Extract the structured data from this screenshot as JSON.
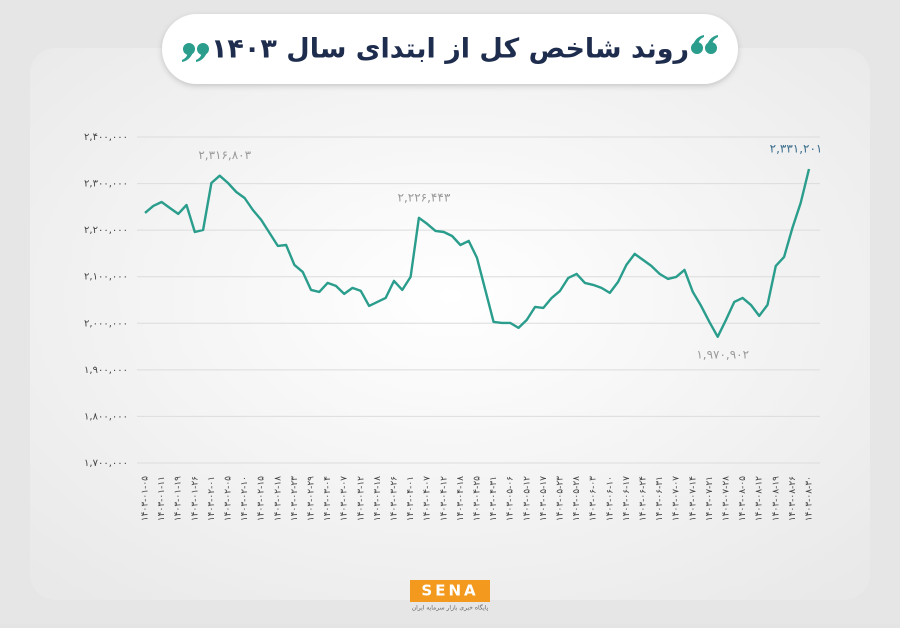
{
  "chart_data": {
    "type": "line",
    "title": "روند شاخص کل از ابتدای سال ۱۴۰۳",
    "categories": [
      "۱۴۰۳-۰۱-۰۵",
      null,
      "۱۴۰۳-۰۱-۱۱",
      null,
      "۱۴۰۳-۰۱-۱۹",
      null,
      "۱۴۰۳-۰۱-۲۶",
      null,
      "۱۴۰۳-۰۲-۰۱",
      null,
      "۱۴۰۳-۰۲-۰۵",
      null,
      "۱۴۰۳-۰۲-۱۰",
      null,
      "۱۴۰۳-۰۲-۱۵",
      null,
      "۱۴۰۳-۰۲-۱۸",
      null,
      "۱۴۰۳-۰۲-۲۳",
      null,
      "۱۴۰۳-۰۲-۲۹",
      null,
      "۱۴۰۳-۰۳-۰۴",
      null,
      "۱۴۰۳-۰۳-۰۷",
      null,
      "۱۴۰۳-۰۳-۱۲",
      null,
      "۱۴۰۳-۰۳-۱۸",
      null,
      "۱۴۰۳-۰۳-۲۶",
      null,
      "۱۴۰۳-۰۴-۰۱",
      null,
      "۱۴۰۳-۰۴-۰۷",
      null,
      "۱۴۰۳-۰۴-۱۲",
      null,
      "۱۴۰۳-۰۴-۱۸",
      null,
      "۱۴۰۳-۰۴-۲۵",
      null,
      "۱۴۰۳-۰۴-۳۱",
      null,
      "۱۴۰۳-۰۵-۰۶",
      null,
      "۱۴۰۳-۰۵-۱۲",
      null,
      "۱۴۰۳-۰۵-۱۷",
      null,
      "۱۴۰۳-۰۵-۲۳",
      null,
      "۱۴۰۳-۰۵-۲۸",
      null,
      "۱۴۰۳-۰۶-۰۳",
      null,
      "۱۴۰۳-۰۶-۱۰",
      null,
      "۱۴۰۳-۰۶-۱۷",
      null,
      "۱۴۰۳-۰۶-۲۴",
      null,
      "۱۴۰۳-۰۶-۳۱",
      null,
      "۱۴۰۳-۰۷-۰۷",
      null,
      "۱۴۰۳-۰۷-۱۴",
      null,
      "۱۴۰۳-۰۷-۲۱",
      null,
      "۱۴۰۳-۰۷-۲۸",
      null,
      "۱۴۰۳-۰۸-۰۵",
      null,
      "۱۴۰۳-۰۸-۱۲",
      null,
      "۱۴۰۳-۰۸-۱۹",
      null,
      "۱۴۰۳-۰۸-۲۶",
      null,
      "۱۴۰۳-۰۸-۳۰"
    ],
    "values": [
      2237000,
      2252000,
      2260500,
      2247600,
      2234800,
      2254000,
      2196100,
      2200400,
      2301300,
      2316803,
      2301300,
      2282000,
      2269100,
      2243300,
      2221900,
      2194000,
      2166100,
      2168200,
      2125300,
      2110300,
      2071700,
      2067400,
      2086700,
      2080300,
      2063100,
      2076000,
      2069500,
      2037300,
      2045900,
      2054500,
      2091000,
      2071700,
      2099600,
      2226443,
      2213300,
      2198300,
      2196100,
      2187500,
      2168200,
      2176800,
      2140300,
      2071700,
      2003000,
      2000800,
      2000800,
      1990100,
      2007300,
      2035200,
      2033000,
      2054500,
      2069500,
      2097400,
      2106000,
      2086700,
      2082400,
      2076000,
      2065200,
      2088800,
      2125300,
      2148900,
      2136000,
      2123200,
      2106000,
      2095300,
      2099600,
      2114600,
      2067400,
      2037300,
      2003000,
      1970902,
      2007300,
      2045900,
      2054500,
      2039500,
      2015900,
      2039500,
      2123200,
      2142500,
      2204700,
      2258400,
      2331201
    ],
    "value_labels": [
      null,
      null,
      null,
      null,
      null,
      null,
      null,
      null,
      null,
      "۲,۳۱۶,۸۰۳",
      null,
      null,
      null,
      null,
      null,
      null,
      null,
      null,
      null,
      null,
      null,
      null,
      null,
      null,
      null,
      null,
      null,
      null,
      null,
      null,
      null,
      null,
      null,
      "۲,۲۲۶,۴۴۳",
      null,
      null,
      null,
      null,
      null,
      null,
      null,
      null,
      null,
      null,
      null,
      null,
      null,
      null,
      null,
      null,
      null,
      null,
      null,
      null,
      null,
      null,
      null,
      null,
      null,
      null,
      null,
      null,
      null,
      null,
      null,
      null,
      null,
      null,
      null,
      "۱,۹۷۰,۹۰۲",
      null,
      null,
      null,
      null,
      null,
      null,
      null,
      null,
      null,
      null,
      "۲,۳۳۱,۲۰۱"
    ],
    "color": "#2a9d8c",
    "ylim": [
      1700000,
      2400000
    ],
    "yticks": [
      {
        "value": 1700000,
        "label": "۱,۷۰۰,۰۰۰"
      },
      {
        "value": 1800000,
        "label": "۱,۸۰۰,۰۰۰"
      },
      {
        "value": 1900000,
        "label": "۱,۹۰۰,۰۰۰"
      },
      {
        "value": 2000000,
        "label": "۲,۰۰۰,۰۰۰"
      },
      {
        "value": 2100000,
        "label": "۲,۱۰۰,۰۰۰"
      },
      {
        "value": 2200000,
        "label": "۲,۲۰۰,۰۰۰"
      },
      {
        "value": 2300000,
        "label": "۲,۳۰۰,۰۰۰"
      },
      {
        "value": 2400000,
        "label": "۲,۴۰۰,۰۰۰"
      }
    ],
    "grid": true
  },
  "footer": {
    "logo": "SENA",
    "subtitle": "پایگاه خبری بازار سرمایه ایران"
  }
}
